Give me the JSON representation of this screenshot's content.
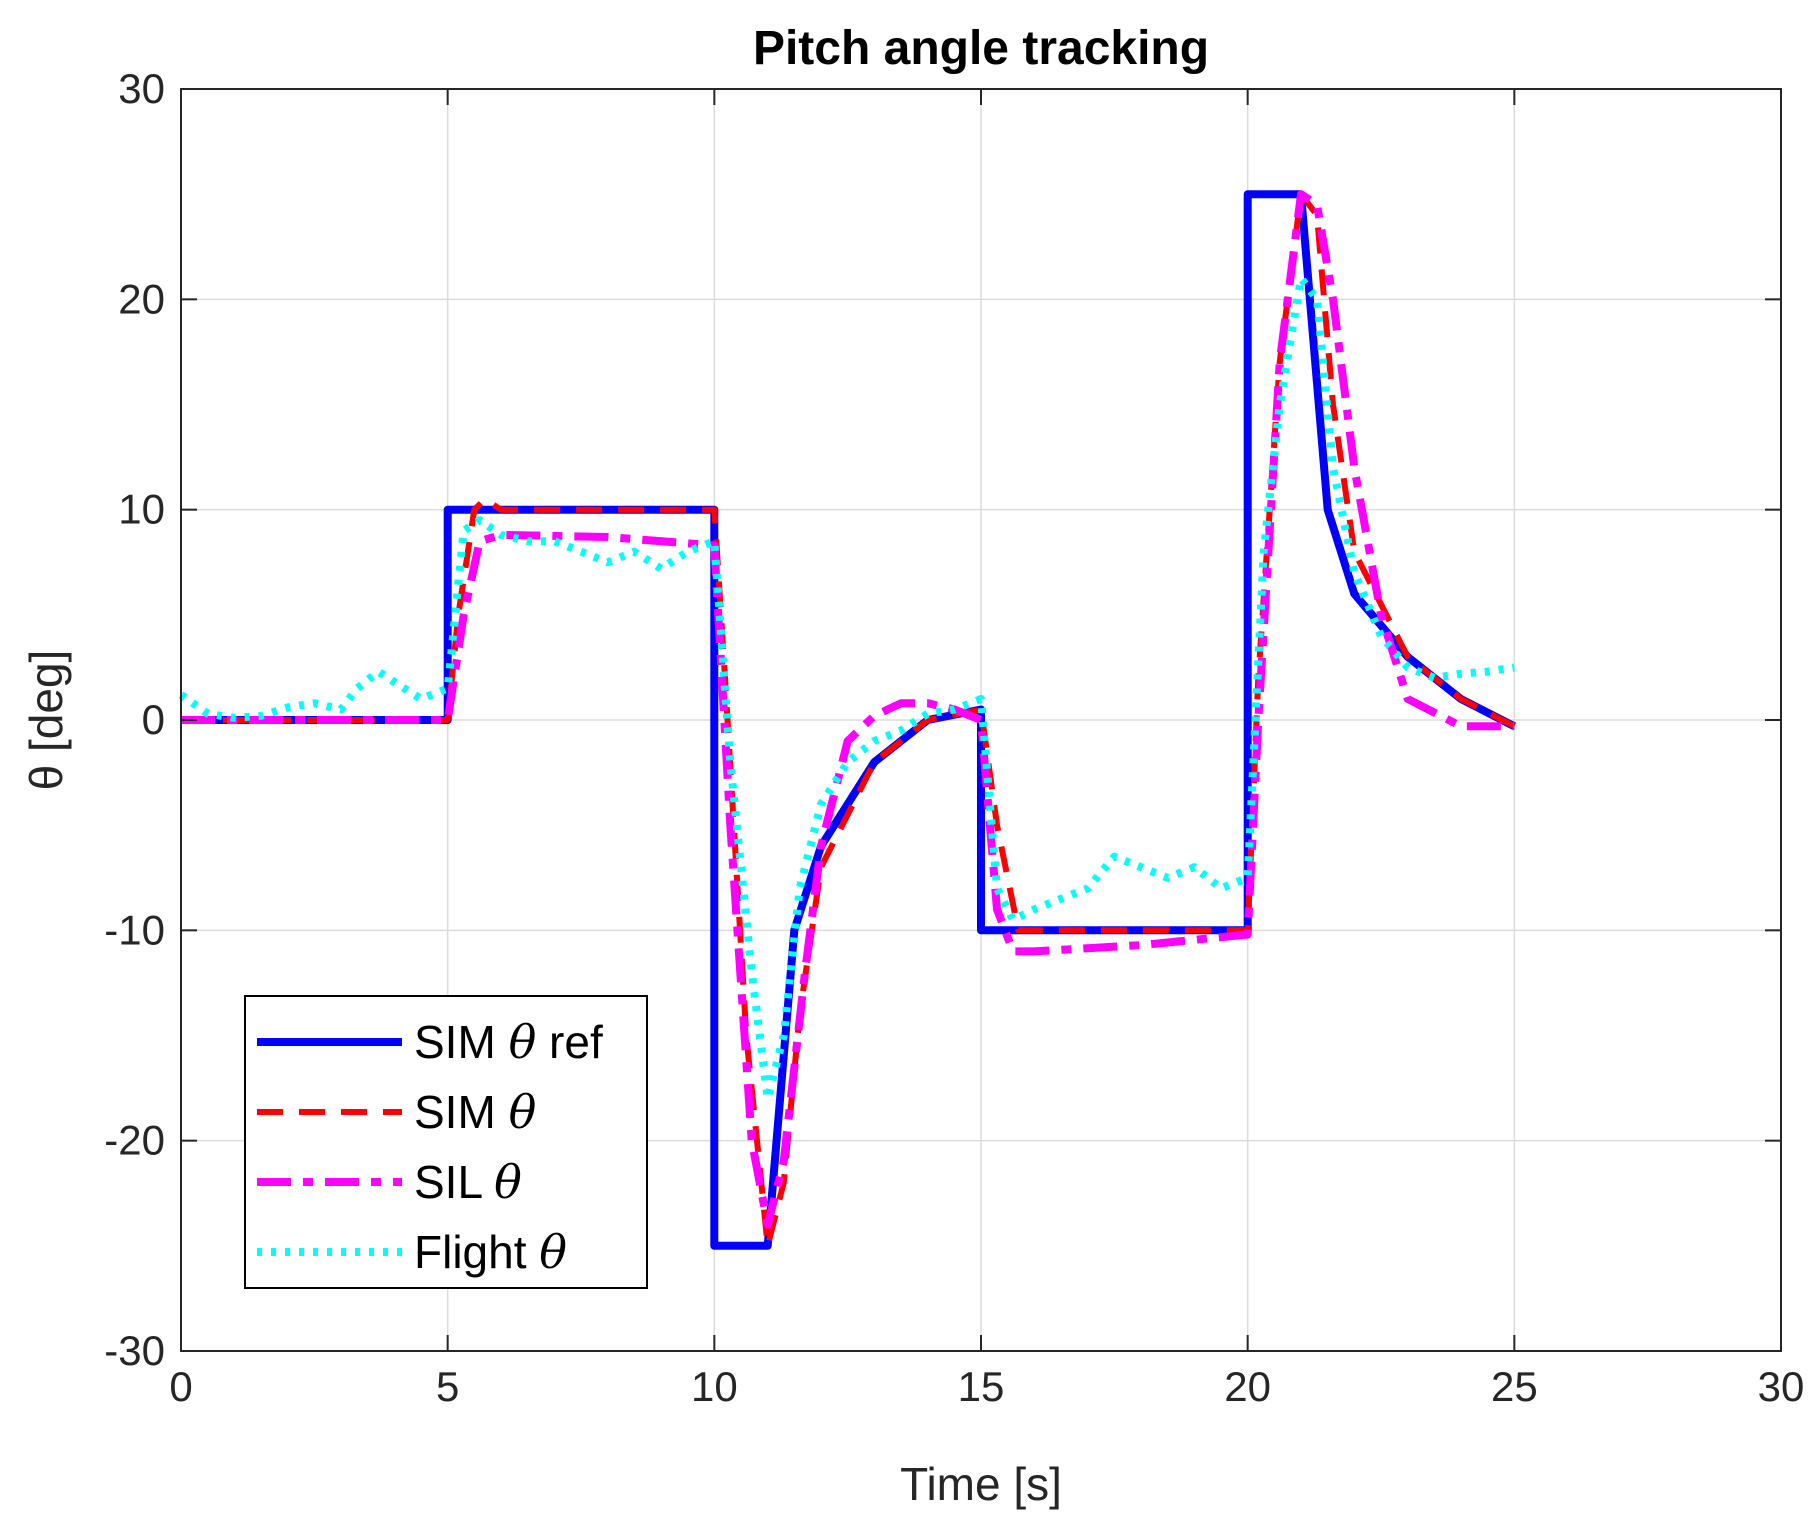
{
  "chart_data": {
    "type": "line",
    "title": "Pitch angle tracking",
    "xlabel": "Time [s]",
    "ylabel": "θ [deg]",
    "xlim": [
      0,
      30
    ],
    "ylim": [
      -30,
      30
    ],
    "xticks": [
      0,
      5,
      10,
      15,
      20,
      25,
      30
    ],
    "yticks": [
      -30,
      -20,
      -10,
      0,
      10,
      20,
      30
    ],
    "xtick_labels": [
      "0",
      "5",
      "10",
      "15",
      "20",
      "25",
      "30"
    ],
    "ytick_labels": [
      "-30",
      "-20",
      "-10",
      "0",
      "10",
      "20",
      "30"
    ],
    "grid": true,
    "legend_position": "bottom-left",
    "series": [
      {
        "name": "SIM θ ref",
        "legend_prefix": "SIM",
        "legend_suffix": "ref",
        "color": "#0000ff",
        "style": "solid",
        "x": [
          0,
          5,
          5,
          10,
          10,
          11,
          11.5,
          12,
          13,
          14,
          15,
          15,
          20,
          20,
          21,
          21.5,
          22,
          23,
          24,
          25
        ],
        "y": [
          0,
          0,
          10,
          10,
          -25,
          -25,
          -10,
          -6,
          -2,
          0,
          0.5,
          -10,
          -10,
          25,
          25,
          10,
          6,
          3,
          1,
          -0.3
        ]
      },
      {
        "name": "SIM θ",
        "legend_prefix": "SIM",
        "legend_suffix": "",
        "color": "#ff0000",
        "style": "dashed",
        "x": [
          0,
          5,
          5.2,
          5.5,
          5.7,
          6,
          10,
          10.2,
          10.6,
          11,
          11.3,
          11.6,
          12,
          13,
          14,
          15,
          15.3,
          15.7,
          20,
          20.2,
          20.6,
          21,
          21.3,
          21.6,
          22,
          23,
          24,
          25
        ],
        "y": [
          0,
          0,
          5,
          10,
          10.5,
          10,
          10,
          2,
          -15,
          -25,
          -22,
          -14,
          -7,
          -2,
          0,
          0.5,
          -5,
          -10,
          -10,
          2,
          17,
          25,
          24,
          15,
          8,
          3,
          1,
          -0.3
        ]
      },
      {
        "name": "SIL θ",
        "legend_prefix": "SIL",
        "legend_suffix": "",
        "color": "#ff00ff",
        "style": "dashdot",
        "x": [
          0,
          5,
          5.3,
          5.6,
          6,
          8,
          10,
          10.3,
          10.7,
          11,
          11.3,
          11.7,
          12,
          12.5,
          13,
          13.5,
          14,
          14.5,
          15,
          15.3,
          15.6,
          16,
          18,
          20,
          20.2,
          20.6,
          21,
          21.3,
          21.6,
          22,
          22.5,
          23,
          24,
          25
        ],
        "y": [
          0,
          0,
          5,
          8.5,
          8.8,
          8.7,
          8.3,
          -5,
          -20,
          -24,
          -21,
          -12,
          -6,
          -1,
          0.2,
          0.8,
          0.8,
          0.5,
          0,
          -9,
          -11,
          -11,
          -10.7,
          -10.2,
          0,
          17,
          25,
          24.5,
          20,
          12,
          5,
          1,
          -0.3,
          -0.3
        ]
      },
      {
        "name": "Flight θ",
        "legend_prefix": "Flight",
        "legend_suffix": "",
        "color": "#00ffff",
        "style": "dotted",
        "x": [
          0,
          0.5,
          1,
          1.5,
          2,
          2.5,
          3,
          3.3,
          3.7,
          4,
          4.5,
          5,
          5.3,
          5.6,
          6,
          6.5,
          7,
          7.5,
          8,
          8.5,
          9,
          9.5,
          10,
          10.3,
          10.7,
          11,
          11.3,
          11.6,
          12,
          12.5,
          13,
          13.5,
          14,
          14.5,
          15,
          15.3,
          15.6,
          16,
          16.5,
          17,
          17.5,
          18,
          18.5,
          19,
          19.5,
          20,
          20.3,
          20.6,
          21,
          21.3,
          21.6,
          22,
          22.5,
          23,
          23.5,
          24,
          24.5,
          25
        ],
        "y": [
          1.2,
          0.3,
          0.1,
          0.2,
          0.6,
          0.8,
          0.5,
          1.5,
          2.3,
          1.8,
          1,
          1.5,
          9,
          9.5,
          8.8,
          8.5,
          8.5,
          8,
          7.5,
          8,
          7.2,
          8,
          8.5,
          -2,
          -12,
          -18,
          -15,
          -8,
          -4,
          -2,
          -1,
          -0.5,
          0.3,
          0.5,
          1,
          -8,
          -9.5,
          -9,
          -8.5,
          -8,
          -6.5,
          -7,
          -7.5,
          -7,
          -8,
          -7.5,
          8,
          15,
          21,
          20,
          12,
          7,
          4,
          2.5,
          2,
          2.2,
          2.3,
          2.5
        ]
      }
    ]
  }
}
